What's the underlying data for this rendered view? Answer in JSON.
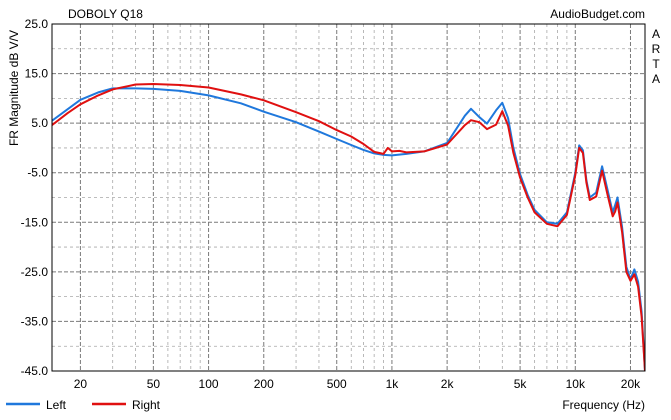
{
  "chart_data": {
    "type": "line",
    "title": "DOBOLY Q18",
    "watermark": "AudioBudget.com",
    "side_label": "ARTA",
    "xlabel": "Frequency (Hz)",
    "ylabel": "FR Magnitude dB V/V",
    "x_scale": "log",
    "xlim": [
      14,
      24000
    ],
    "ylim": [
      -45,
      25
    ],
    "y_ticks": [
      25.0,
      15.0,
      5.0,
      -5.0,
      -15.0,
      -25.0,
      -35.0,
      -45.0
    ],
    "y_tick_labels": [
      "25.0",
      "15.0",
      "5.0",
      "-5.0",
      "-15.0",
      "-25.0",
      "-35.0",
      "-45.0"
    ],
    "x_ticks": [
      20,
      50,
      100,
      200,
      500,
      1000,
      2000,
      5000,
      10000,
      20000
    ],
    "x_tick_labels": [
      "20",
      "50",
      "100",
      "200",
      "500",
      "1k",
      "2k",
      "5k",
      "10k",
      "20k"
    ],
    "grid": true,
    "legend_position": "bottom-left",
    "series": [
      {
        "name": "Left",
        "color": "#1f78dc",
        "x": [
          14,
          17,
          20,
          25,
          30,
          40,
          50,
          70,
          100,
          150,
          200,
          300,
          400,
          500,
          600,
          700,
          800,
          900,
          1000,
          1200,
          1500,
          2000,
          2500,
          2700,
          3000,
          3300,
          3700,
          4000,
          4300,
          4600,
          5000,
          5500,
          6000,
          7000,
          8000,
          9000,
          10000,
          10500,
          11000,
          11500,
          12000,
          13000,
          14000,
          15000,
          16000,
          16500,
          17000,
          18000,
          19000,
          20000,
          21000,
          22000,
          23000,
          24000
        ],
        "y": [
          5.5,
          7.8,
          9.7,
          11.2,
          12.0,
          12.0,
          11.9,
          11.5,
          10.6,
          9.0,
          7.3,
          5.2,
          3.3,
          1.8,
          0.6,
          -0.4,
          -1.1,
          -1.4,
          -1.5,
          -1.2,
          -0.7,
          1.0,
          6.5,
          7.9,
          6.2,
          4.9,
          7.6,
          9.1,
          6.0,
          0.0,
          -5.3,
          -9.5,
          -12.5,
          -15.0,
          -15.3,
          -13.0,
          -5.0,
          0.5,
          -0.5,
          -6.5,
          -10.0,
          -9.0,
          -3.7,
          -8.5,
          -13.0,
          -11.5,
          -10.0,
          -16.0,
          -24.0,
          -26.5,
          -24.5,
          -27.0,
          -33.0,
          -45.0
        ]
      },
      {
        "name": "Right",
        "color": "#e01010",
        "x": [
          14,
          17,
          20,
          25,
          30,
          40,
          50,
          70,
          100,
          150,
          200,
          300,
          400,
          500,
          600,
          700,
          800,
          900,
          950,
          1000,
          1100,
          1200,
          1500,
          2000,
          2500,
          2700,
          3000,
          3300,
          3700,
          4000,
          4300,
          4600,
          5000,
          5500,
          6000,
          7000,
          8000,
          9000,
          10000,
          10500,
          11000,
          11500,
          12000,
          13000,
          14000,
          15000,
          16000,
          16500,
          17000,
          18000,
          19000,
          20000,
          21000,
          22000,
          23000,
          24000
        ],
        "y": [
          4.6,
          7.0,
          8.8,
          10.6,
          11.8,
          12.8,
          12.9,
          12.7,
          12.2,
          10.8,
          9.6,
          7.2,
          5.4,
          3.6,
          2.3,
          0.8,
          -0.8,
          -1.2,
          0.0,
          -0.7,
          -0.6,
          -0.9,
          -0.7,
          0.7,
          4.6,
          5.6,
          5.2,
          3.8,
          4.7,
          7.4,
          4.5,
          -1.0,
          -6.0,
          -10.0,
          -13.0,
          -15.3,
          -15.8,
          -13.5,
          -5.5,
          0.0,
          -1.0,
          -7.0,
          -10.5,
          -9.8,
          -4.6,
          -9.5,
          -13.8,
          -12.8,
          -11.0,
          -17.0,
          -25.0,
          -26.8,
          -25.5,
          -28.0,
          -34.0,
          -45.0
        ]
      }
    ]
  }
}
